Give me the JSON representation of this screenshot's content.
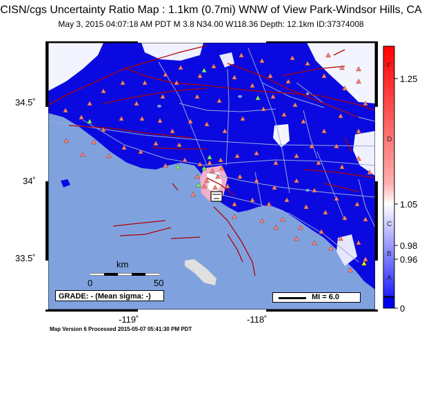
{
  "title": "CISN/cgs Uncertainty Ratio Map : 1.1km (0.7mi) WNW of View Park-Windsor Hills, CA",
  "subtitle": "May  3, 2015 04:07:18 AM PDT   M 3.8   N34.00 W118.36   Depth: 12.1km   ID:37374008",
  "map": {
    "lat_labels": [
      "34.5˚",
      "34˚",
      "33.5˚"
    ],
    "lon_labels": [
      "-119˚",
      "-118˚"
    ],
    "scale_bar": {
      "unit": "km",
      "start": "0",
      "end": "50"
    },
    "grade_text": "GRADE: - (Mean sigma: -)",
    "mi_legend": "MI = 6.0"
  },
  "colorbar": {
    "values": [
      "1.25",
      "1.05",
      "0.98",
      "0.96",
      "0"
    ],
    "letters": [
      "F",
      "D",
      "C",
      "B",
      "A"
    ],
    "colors": {
      "high": "#ff0000",
      "mid": "#ffffff",
      "low": "#0000ee"
    }
  },
  "colors": {
    "ocean": "#7fa2df",
    "uncertainty_fill": "#0a0ae0",
    "fault": "#b00000",
    "road": "#9aa9d9",
    "station_red": "#ff8070",
    "station_green": "#66ff66"
  },
  "footer": "Map Version 6 Processed 2015-05-07 05:41:30 PM PDT"
}
